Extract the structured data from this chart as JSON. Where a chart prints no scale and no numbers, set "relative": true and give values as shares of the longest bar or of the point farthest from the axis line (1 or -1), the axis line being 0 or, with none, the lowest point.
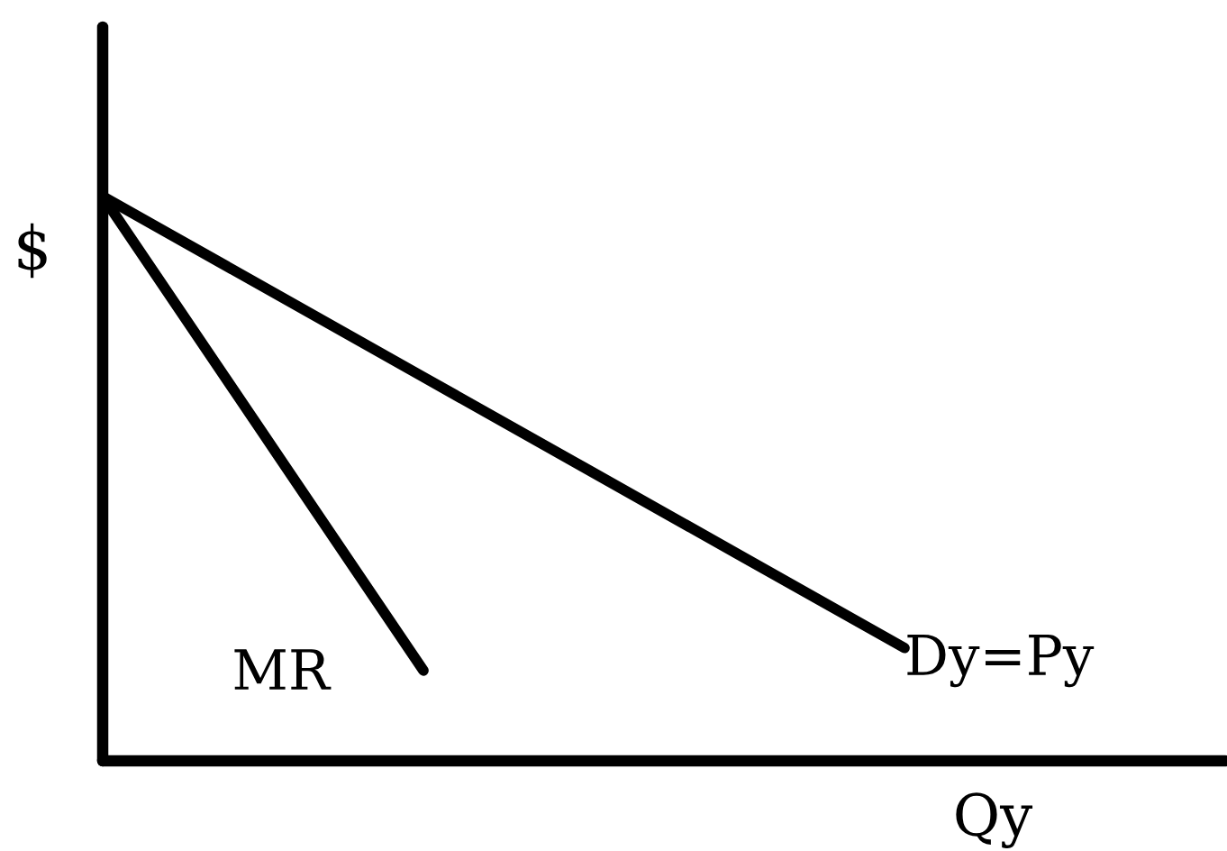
{
  "chart_data": {
    "type": "line",
    "relative": true,
    "xlabel": "Qy",
    "ylabel": "$",
    "categories": [
      null,
      null,
      null,
      null,
      null,
      null,
      null,
      null
    ],
    "series": [
      {
        "name": "Dy=Py",
        "color": "#000000",
        "values": [
          1,
          0.84,
          0.68,
          0.52,
          0.36,
          0.2,
          null,
          null
        ]
      },
      {
        "name": "MR",
        "color": "#000000",
        "values": [
          1,
          0.58,
          0.16,
          null,
          null,
          null,
          null,
          null
        ]
      }
    ]
  }
}
